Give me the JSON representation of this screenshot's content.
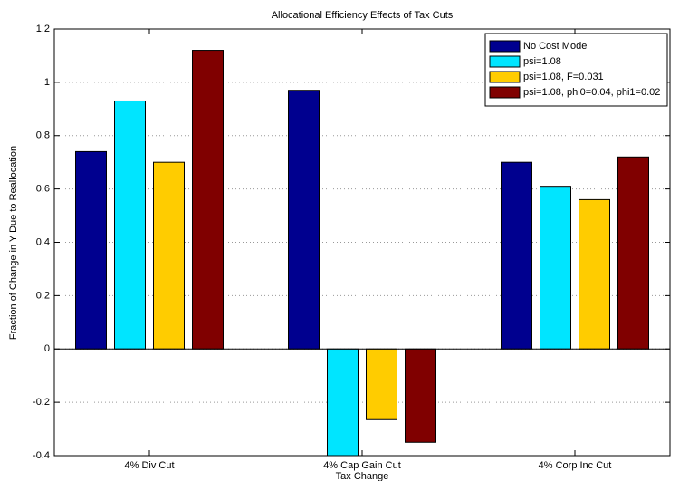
{
  "chart_data": {
    "type": "bar",
    "title": "Allocational Efficiency Effects of Tax Cuts",
    "x_label": "Tax Change",
    "y_label": "Fraction of Change in Y Due to Reallocation",
    "categories": [
      "4% Div Cut",
      "4% Cap Gain Cut",
      "4% Corp Inc Cut"
    ],
    "series": [
      {
        "name": "No Cost Model",
        "color": "#00008f",
        "values": [
          0.74,
          0.97,
          0.7
        ]
      },
      {
        "name": "psi=1.08",
        "color": "#00e5ff",
        "values": [
          0.93,
          -0.4,
          0.61
        ]
      },
      {
        "name": "psi=1.08, F=0.031",
        "color": "#ffcc00",
        "values": [
          0.7,
          -0.265,
          0.56
        ]
      },
      {
        "name": "psi=1.08, phi0=0.04, phi1=0.02",
        "color": "#800000",
        "values": [
          1.12,
          -0.35,
          0.72
        ]
      }
    ],
    "ylim": [
      -0.4,
      1.2
    ],
    "yticks": [
      -0.4,
      -0.2,
      0,
      0.2,
      0.4,
      0.6,
      0.8,
      1,
      1.2
    ],
    "grid": true,
    "legend": "upper right"
  }
}
